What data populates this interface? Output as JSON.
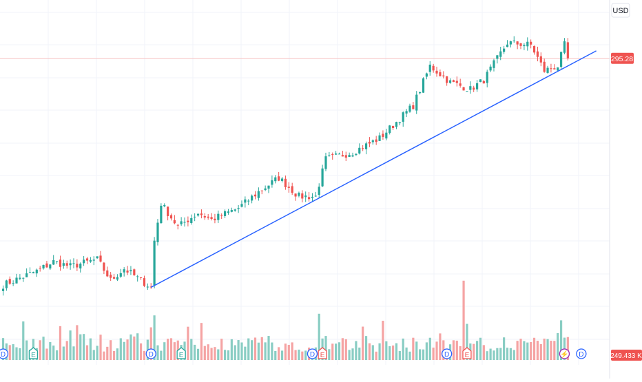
{
  "price_axis": {
    "currency_label": "USD",
    "last_price_label": "295.28",
    "last_volume_label": "249.433 K"
  },
  "colors": {
    "up": "#26a69a",
    "down": "#ef5350",
    "up_volume": "#89cdc3",
    "down_volume": "#f5a3a3",
    "trendline": "#2962ff",
    "price_line": "#f7c0c0",
    "grid": "#f0f3fa",
    "dividend_marker": "#2962ff",
    "earnings_marker": "#26a69a",
    "earnings_marker_alt": "#ef5350",
    "flash_marker": "#9c27b0"
  },
  "event_markers": [
    {
      "type": "dividend",
      "glyph": "D",
      "icon": "dividend-icon",
      "bar": 0
    },
    {
      "type": "earnings",
      "glyph": "E",
      "icon": "earnings-icon",
      "bar": 9
    },
    {
      "type": "dividend",
      "glyph": "D",
      "icon": "dividend-icon",
      "bar": 44
    },
    {
      "type": "earnings",
      "glyph": "E",
      "icon": "earnings-icon",
      "bar": 53
    },
    {
      "type": "dividend",
      "glyph": "D",
      "icon": "dividend-icon",
      "bar": 92
    },
    {
      "type": "earnings_neg",
      "glyph": "E",
      "icon": "earnings-icon",
      "bar": 95
    },
    {
      "type": "dividend",
      "glyph": "D",
      "icon": "dividend-icon",
      "bar": 132
    },
    {
      "type": "earnings_neg",
      "glyph": "E",
      "icon": "earnings-icon",
      "bar": 138
    },
    {
      "type": "flash",
      "glyph": "⚡",
      "icon": "lightning-icon",
      "bar": 167
    },
    {
      "type": "dividend",
      "glyph": "D",
      "icon": "dividend-icon",
      "bar": 172
    }
  ],
  "chart_data": {
    "type": "candlestick",
    "ylim": [
      180,
      315
    ],
    "last_price": 295.28,
    "grid": true,
    "trendline": {
      "start": {
        "bar": 44,
        "price": 197
      },
      "end": {
        "bar": 174,
        "price": 297
      }
    },
    "anchors": [
      {
        "bar": 0,
        "close": 198
      },
      {
        "bar": 10,
        "close": 204
      },
      {
        "bar": 15,
        "close": 208
      },
      {
        "bar": 20,
        "close": 206
      },
      {
        "bar": 28,
        "close": 209
      },
      {
        "bar": 32,
        "close": 200
      },
      {
        "bar": 36,
        "close": 205
      },
      {
        "bar": 44,
        "close": 197
      },
      {
        "bar": 45,
        "close": 217
      },
      {
        "bar": 47,
        "close": 233
      },
      {
        "bar": 52,
        "close": 223
      },
      {
        "bar": 58,
        "close": 229
      },
      {
        "bar": 62,
        "close": 226
      },
      {
        "bar": 70,
        "close": 231
      },
      {
        "bar": 76,
        "close": 238
      },
      {
        "bar": 82,
        "close": 244
      },
      {
        "bar": 88,
        "close": 236
      },
      {
        "bar": 93,
        "close": 236
      },
      {
        "bar": 96,
        "close": 252
      },
      {
        "bar": 104,
        "close": 255
      },
      {
        "bar": 112,
        "close": 261
      },
      {
        "bar": 122,
        "close": 275
      },
      {
        "bar": 127,
        "close": 292
      },
      {
        "bar": 133,
        "close": 285
      },
      {
        "bar": 139,
        "close": 282
      },
      {
        "bar": 143,
        "close": 286
      },
      {
        "bar": 150,
        "close": 302
      },
      {
        "bar": 157,
        "close": 301
      },
      {
        "bar": 161,
        "close": 290
      },
      {
        "bar": 165,
        "close": 292
      },
      {
        "bar": 167,
        "close": 301
      },
      {
        "bar": 168,
        "close": 295.28
      }
    ],
    "volume_spikes": [
      {
        "bar": 137,
        "volume": 2.4
      },
      {
        "bar": 45,
        "volume": 1.35
      },
      {
        "bar": 94,
        "volume": 1.4
      },
      {
        "bar": 166,
        "volume": 1.2
      }
    ]
  }
}
